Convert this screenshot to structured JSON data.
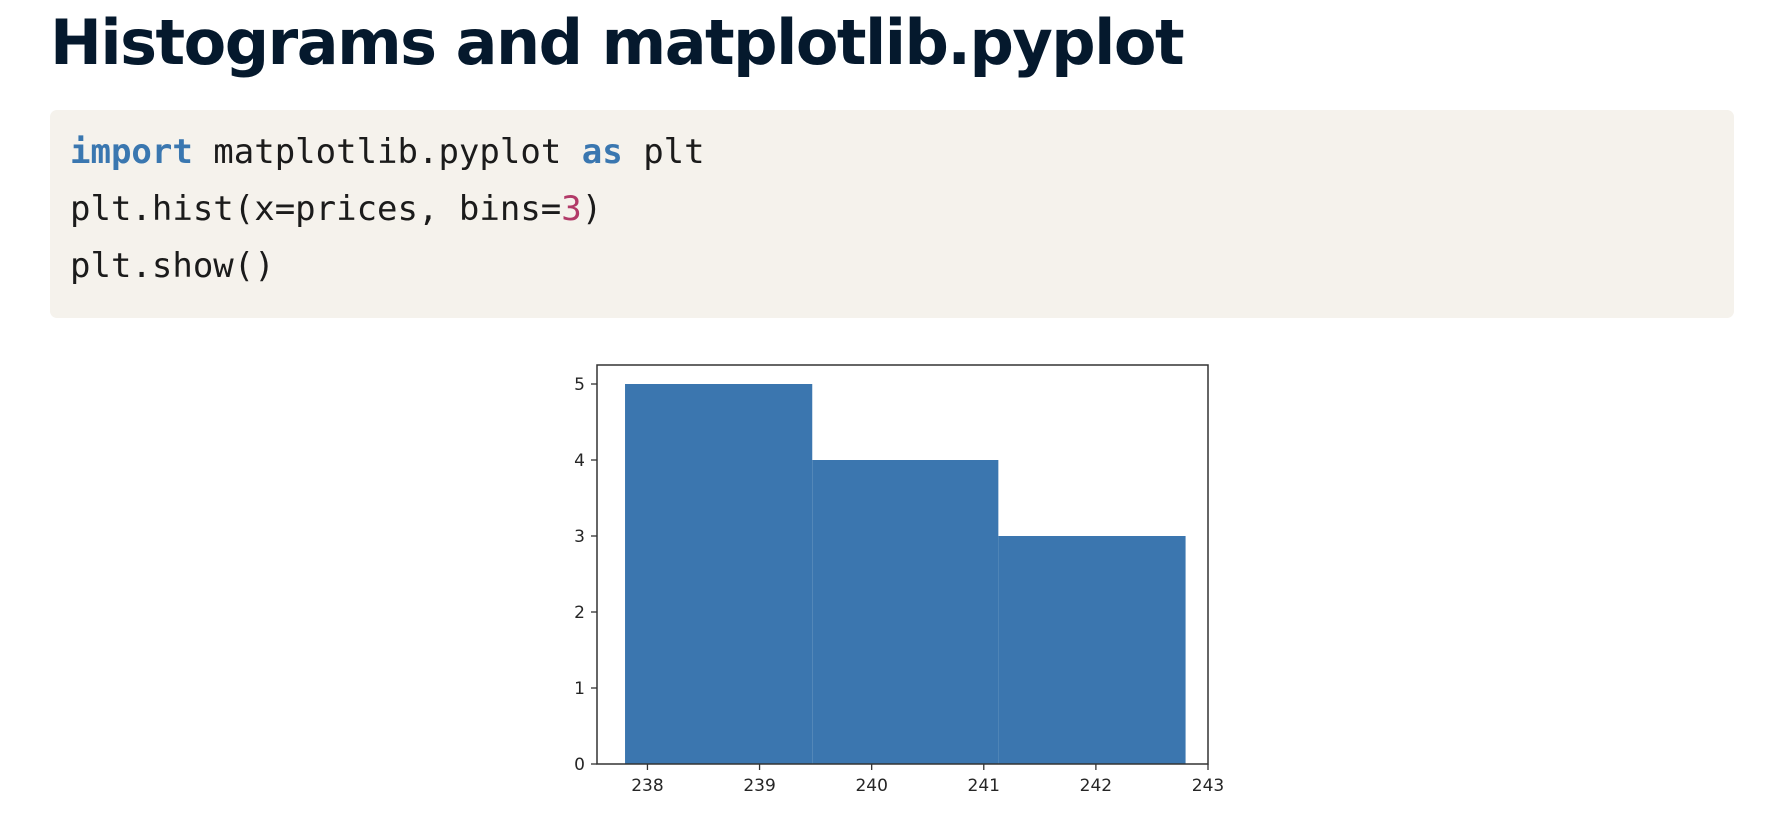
{
  "title": "Histograms and matplotlib.pyplot",
  "code": {
    "line1": {
      "kw1": "import",
      "mid": " matplotlib.pyplot ",
      "kw2": "as",
      "tail": " plt"
    },
    "line2": {
      "head": "plt.hist(x=prices, bins=",
      "num": "3",
      "tail": ")"
    },
    "line3": {
      "text": "plt.show()"
    }
  },
  "colors": {
    "bar": "#3b76af",
    "keyword": "#3a77b0",
    "number": "#b23a68",
    "code_bg": "#f5f2ec",
    "title": "#05192d"
  },
  "chart_data": {
    "type": "bar",
    "histogram": true,
    "bins": [
      {
        "x0": 237.8,
        "x1": 239.47,
        "count": 5
      },
      {
        "x0": 239.47,
        "x1": 241.13,
        "count": 4
      },
      {
        "x0": 241.13,
        "x1": 242.8,
        "count": 3
      }
    ],
    "xlim": [
      237.55,
      243.0
    ],
    "ylim": [
      0,
      5.25
    ],
    "xticks": [
      238,
      239,
      240,
      241,
      242,
      243
    ],
    "yticks": [
      0,
      1,
      2,
      3,
      4,
      5
    ],
    "title": "",
    "xlabel": "",
    "ylabel": "",
    "grid": false
  }
}
